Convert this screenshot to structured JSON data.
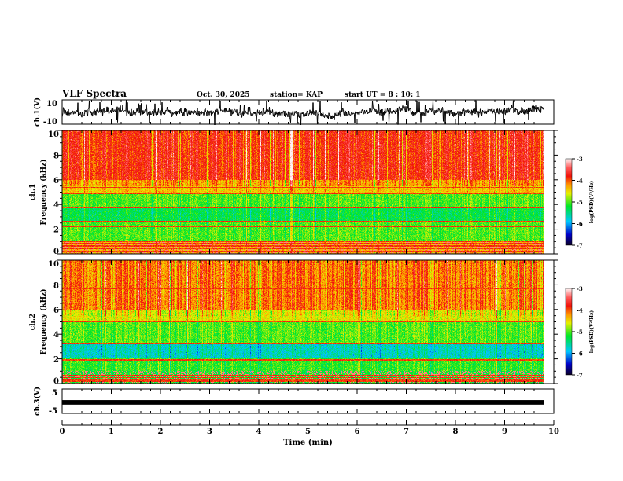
{
  "header": {
    "title": "VLF Spectra",
    "date": "Oct. 30, 2025",
    "station": "station= KAP",
    "start": "start  UT =   8  : 10: 1"
  },
  "colors": {
    "axis": "#000000",
    "background": "#ffffff"
  },
  "chart_data": [
    {
      "type": "line",
      "name": "ch1-waveform",
      "ylabel": "ch.1(V)",
      "ylim": [
        -10,
        10
      ],
      "yticks": [
        "10",
        "-10"
      ],
      "xlim": [
        0,
        10
      ],
      "data_end_min": 9.8,
      "description_values": {
        "mean": 0,
        "typical_amplitude": 5,
        "spike_amplitude": 10
      }
    },
    {
      "type": "heatmap",
      "name": "ch1-spectrogram",
      "ylabel_top": "ch.1",
      "ylabel": "Frequency  (kHz)",
      "ylim": [
        0,
        10
      ],
      "yticks": [
        "0",
        "2",
        "4",
        "6",
        "8",
        "10"
      ],
      "xlim": [
        0,
        10
      ],
      "data_end_min": 9.8,
      "bands_khz_logpsd": [
        [
          6,
          10,
          -3.8
        ],
        [
          5.5,
          6,
          -4.2
        ],
        [
          5,
          5.5,
          -4.4
        ],
        [
          3.7,
          5,
          -5.0
        ],
        [
          2.6,
          3.7,
          -5.3
        ],
        [
          1,
          2.6,
          -5.0
        ],
        [
          0,
          1,
          -4.3
        ]
      ],
      "lines_khz": [
        0.2,
        0.4,
        0.6,
        0.8,
        1.0,
        2.2,
        2.6,
        3.7,
        4.9,
        5.4
      ],
      "colorbar": {
        "label": "log(PSD)(V²/Hz)",
        "range": [
          -7,
          -3
        ],
        "ticks": [
          "-3",
          "-4",
          "-5",
          "-6",
          "-7"
        ]
      }
    },
    {
      "type": "heatmap",
      "name": "ch2-spectrogram",
      "ylabel_top": "ch.2",
      "ylabel": "Frequency  (kHz)",
      "ylim": [
        0,
        10
      ],
      "yticks": [
        "0",
        "2",
        "4",
        "6",
        "8",
        "10"
      ],
      "xlim": [
        0,
        10
      ],
      "data_end_min": 9.8,
      "bands_khz_logpsd": [
        [
          6,
          10,
          -4.1
        ],
        [
          5,
          6,
          -4.6
        ],
        [
          3.2,
          5,
          -5.0
        ],
        [
          2,
          3.2,
          -5.7
        ],
        [
          1,
          2,
          -5.1
        ],
        [
          0,
          1,
          -5.2
        ]
      ],
      "lines_khz": [
        0.15,
        0.3,
        0.45,
        0.6,
        1.9,
        3.2,
        5.0,
        7.7
      ],
      "colorbar": {
        "label": "log(PSD)(V²/Hz)",
        "range": [
          -7,
          -3
        ],
        "ticks": [
          "-3",
          "-4",
          "-5",
          "-6",
          "-7"
        ]
      }
    },
    {
      "type": "line",
      "name": "ch3-waveform",
      "ylabel": "ch.3(V)",
      "ylim": [
        -5,
        5
      ],
      "yticks": [
        "5",
        "-5"
      ],
      "xlim": [
        0,
        10
      ],
      "data_end_min": 9.8,
      "description_values": {
        "mean": -0.3,
        "band_halfwidth": 0.9
      }
    }
  ],
  "xaxis": {
    "label": "Time  (min)",
    "ticks": [
      "0",
      "1",
      "2",
      "3",
      "4",
      "5",
      "6",
      "7",
      "8",
      "9",
      "10"
    ]
  }
}
